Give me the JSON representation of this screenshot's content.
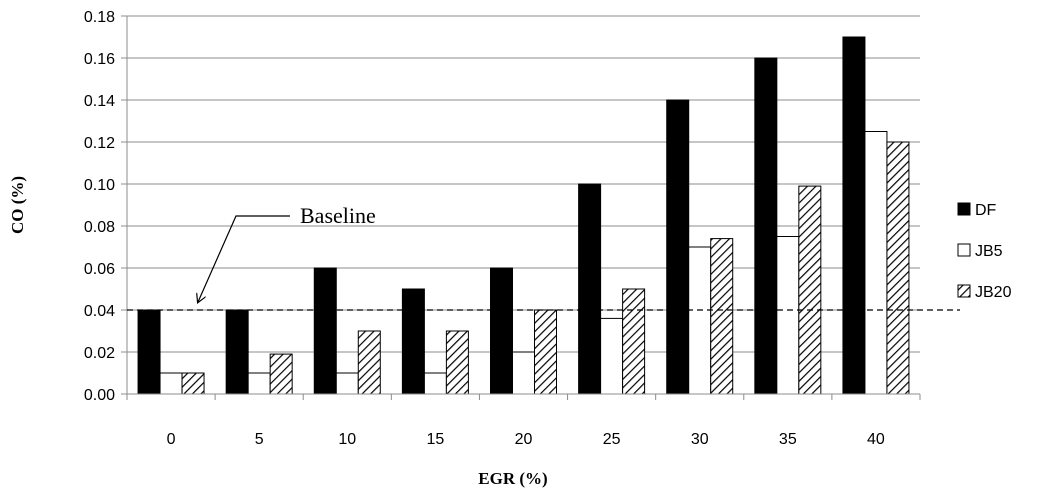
{
  "chart_data": {
    "type": "bar",
    "title": "",
    "xlabel": "EGR (%)",
    "ylabel": "CO (%)",
    "ylim": [
      0,
      0.18
    ],
    "yticks": [
      "0.00",
      "0.02",
      "0.04",
      "0.06",
      "0.08",
      "0.10",
      "0.12",
      "0.14",
      "0.16",
      "0.18"
    ],
    "categories": [
      "0",
      "5",
      "10",
      "15",
      "20",
      "25",
      "30",
      "35",
      "40"
    ],
    "series": [
      {
        "name": "DF",
        "fill": "solid-black",
        "values": [
          0.04,
          0.04,
          0.06,
          0.05,
          0.06,
          0.1,
          0.14,
          0.16,
          0.17
        ]
      },
      {
        "name": "JB5",
        "fill": "white",
        "values": [
          0.01,
          0.01,
          0.01,
          0.01,
          0.02,
          0.036,
          0.07,
          0.075,
          0.125
        ]
      },
      {
        "name": "JB20",
        "fill": "diagonal-hatch",
        "values": [
          0.01,
          0.019,
          0.03,
          0.03,
          0.04,
          0.05,
          0.074,
          0.099,
          0.12
        ]
      }
    ],
    "reference_line": {
      "value": 0.04,
      "style": "dashed"
    },
    "annotation": {
      "text": "Baseline"
    },
    "grid": "horizontal",
    "legend": "right"
  }
}
